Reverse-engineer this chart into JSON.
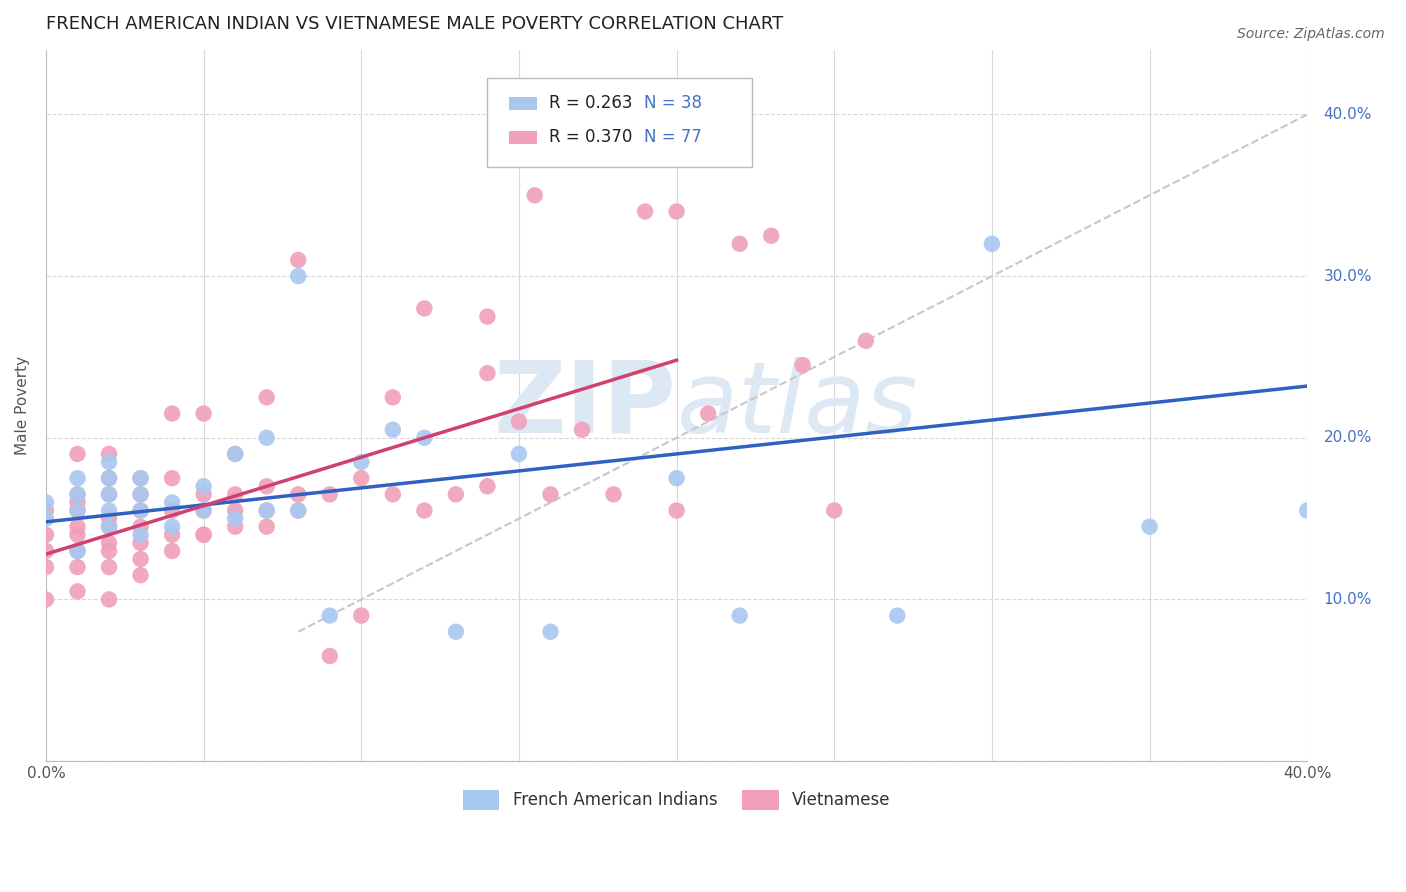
{
  "title": "FRENCH AMERICAN INDIAN VS VIETNAMESE MALE POVERTY CORRELATION CHART",
  "source": "Source: ZipAtlas.com",
  "ylabel": "Male Poverty",
  "xlim": [
    0.0,
    0.4
  ],
  "ylim": [
    0.0,
    0.44
  ],
  "xticks": [
    0.0,
    0.05,
    0.1,
    0.15,
    0.2,
    0.25,
    0.3,
    0.35,
    0.4
  ],
  "xticklabels": [
    "0.0%",
    "",
    "",
    "",
    "",
    "",
    "",
    "",
    "40.0%"
  ],
  "yticks": [
    0.0,
    0.1,
    0.2,
    0.3,
    0.4
  ],
  "yticklabels": [
    "",
    "10.0%",
    "20.0%",
    "30.0%",
    "40.0%"
  ],
  "legend_labels": [
    "French American Indians",
    "Vietnamese"
  ],
  "legend_r": [
    "R = 0.263",
    "R = 0.370"
  ],
  "legend_n": [
    "N = 38",
    "N = 77"
  ],
  "blue_color": "#a8c8f0",
  "pink_color": "#f0a0b8",
  "blue_line_color": "#3060c0",
  "pink_line_color": "#d04070",
  "dashed_line_color": "#c8c8c8",
  "watermark_color": "#dde8f5",
  "background_color": "#ffffff",
  "grid_color": "#d8d8d8",
  "title_color": "#222222",
  "ylabel_color": "#555555",
  "tick_color": "#4472c4",
  "source_color": "#666666",
  "blue_scatter_x": [
    0.0,
    0.0,
    0.01,
    0.01,
    0.01,
    0.01,
    0.02,
    0.02,
    0.02,
    0.02,
    0.02,
    0.03,
    0.03,
    0.03,
    0.03,
    0.04,
    0.04,
    0.05,
    0.05,
    0.06,
    0.06,
    0.07,
    0.07,
    0.08,
    0.08,
    0.09,
    0.1,
    0.11,
    0.12,
    0.13,
    0.15,
    0.16,
    0.2,
    0.22,
    0.27,
    0.3,
    0.35,
    0.4
  ],
  "blue_scatter_y": [
    0.15,
    0.16,
    0.13,
    0.155,
    0.165,
    0.175,
    0.145,
    0.155,
    0.165,
    0.175,
    0.185,
    0.14,
    0.155,
    0.165,
    0.175,
    0.145,
    0.16,
    0.155,
    0.17,
    0.15,
    0.19,
    0.155,
    0.2,
    0.3,
    0.155,
    0.09,
    0.185,
    0.205,
    0.2,
    0.08,
    0.19,
    0.08,
    0.175,
    0.09,
    0.09,
    0.32,
    0.145,
    0.155
  ],
  "pink_scatter_x": [
    0.0,
    0.0,
    0.0,
    0.0,
    0.0,
    0.01,
    0.01,
    0.01,
    0.01,
    0.01,
    0.01,
    0.01,
    0.01,
    0.01,
    0.02,
    0.02,
    0.02,
    0.02,
    0.02,
    0.02,
    0.02,
    0.02,
    0.02,
    0.03,
    0.03,
    0.03,
    0.03,
    0.03,
    0.03,
    0.03,
    0.04,
    0.04,
    0.04,
    0.04,
    0.04,
    0.05,
    0.05,
    0.05,
    0.05,
    0.05,
    0.06,
    0.06,
    0.06,
    0.06,
    0.07,
    0.07,
    0.07,
    0.07,
    0.08,
    0.08,
    0.08,
    0.09,
    0.09,
    0.1,
    0.1,
    0.11,
    0.11,
    0.12,
    0.12,
    0.13,
    0.14,
    0.14,
    0.14,
    0.15,
    0.155,
    0.16,
    0.17,
    0.18,
    0.19,
    0.2,
    0.2,
    0.21,
    0.22,
    0.23,
    0.24,
    0.25,
    0.26
  ],
  "pink_scatter_y": [
    0.1,
    0.12,
    0.13,
    0.14,
    0.155,
    0.105,
    0.12,
    0.13,
    0.14,
    0.145,
    0.155,
    0.16,
    0.165,
    0.19,
    0.1,
    0.12,
    0.13,
    0.135,
    0.145,
    0.15,
    0.165,
    0.175,
    0.19,
    0.115,
    0.125,
    0.135,
    0.145,
    0.155,
    0.165,
    0.175,
    0.13,
    0.14,
    0.155,
    0.175,
    0.215,
    0.14,
    0.14,
    0.155,
    0.165,
    0.215,
    0.145,
    0.155,
    0.165,
    0.19,
    0.145,
    0.155,
    0.17,
    0.225,
    0.155,
    0.165,
    0.31,
    0.065,
    0.165,
    0.09,
    0.175,
    0.165,
    0.225,
    0.155,
    0.28,
    0.165,
    0.17,
    0.24,
    0.275,
    0.21,
    0.35,
    0.165,
    0.205,
    0.165,
    0.34,
    0.155,
    0.34,
    0.215,
    0.32,
    0.325,
    0.245,
    0.155,
    0.26
  ],
  "blue_line_x": [
    0.0,
    0.4
  ],
  "blue_line_y": [
    0.148,
    0.232
  ],
  "pink_line_x": [
    0.0,
    0.2
  ],
  "pink_line_y": [
    0.128,
    0.248
  ],
  "dashed_line_x": [
    0.08,
    0.4
  ],
  "dashed_line_y": [
    0.08,
    0.4
  ],
  "title_fontsize": 13,
  "axis_label_fontsize": 11,
  "tick_fontsize": 11,
  "legend_fontsize": 12,
  "source_fontsize": 10
}
